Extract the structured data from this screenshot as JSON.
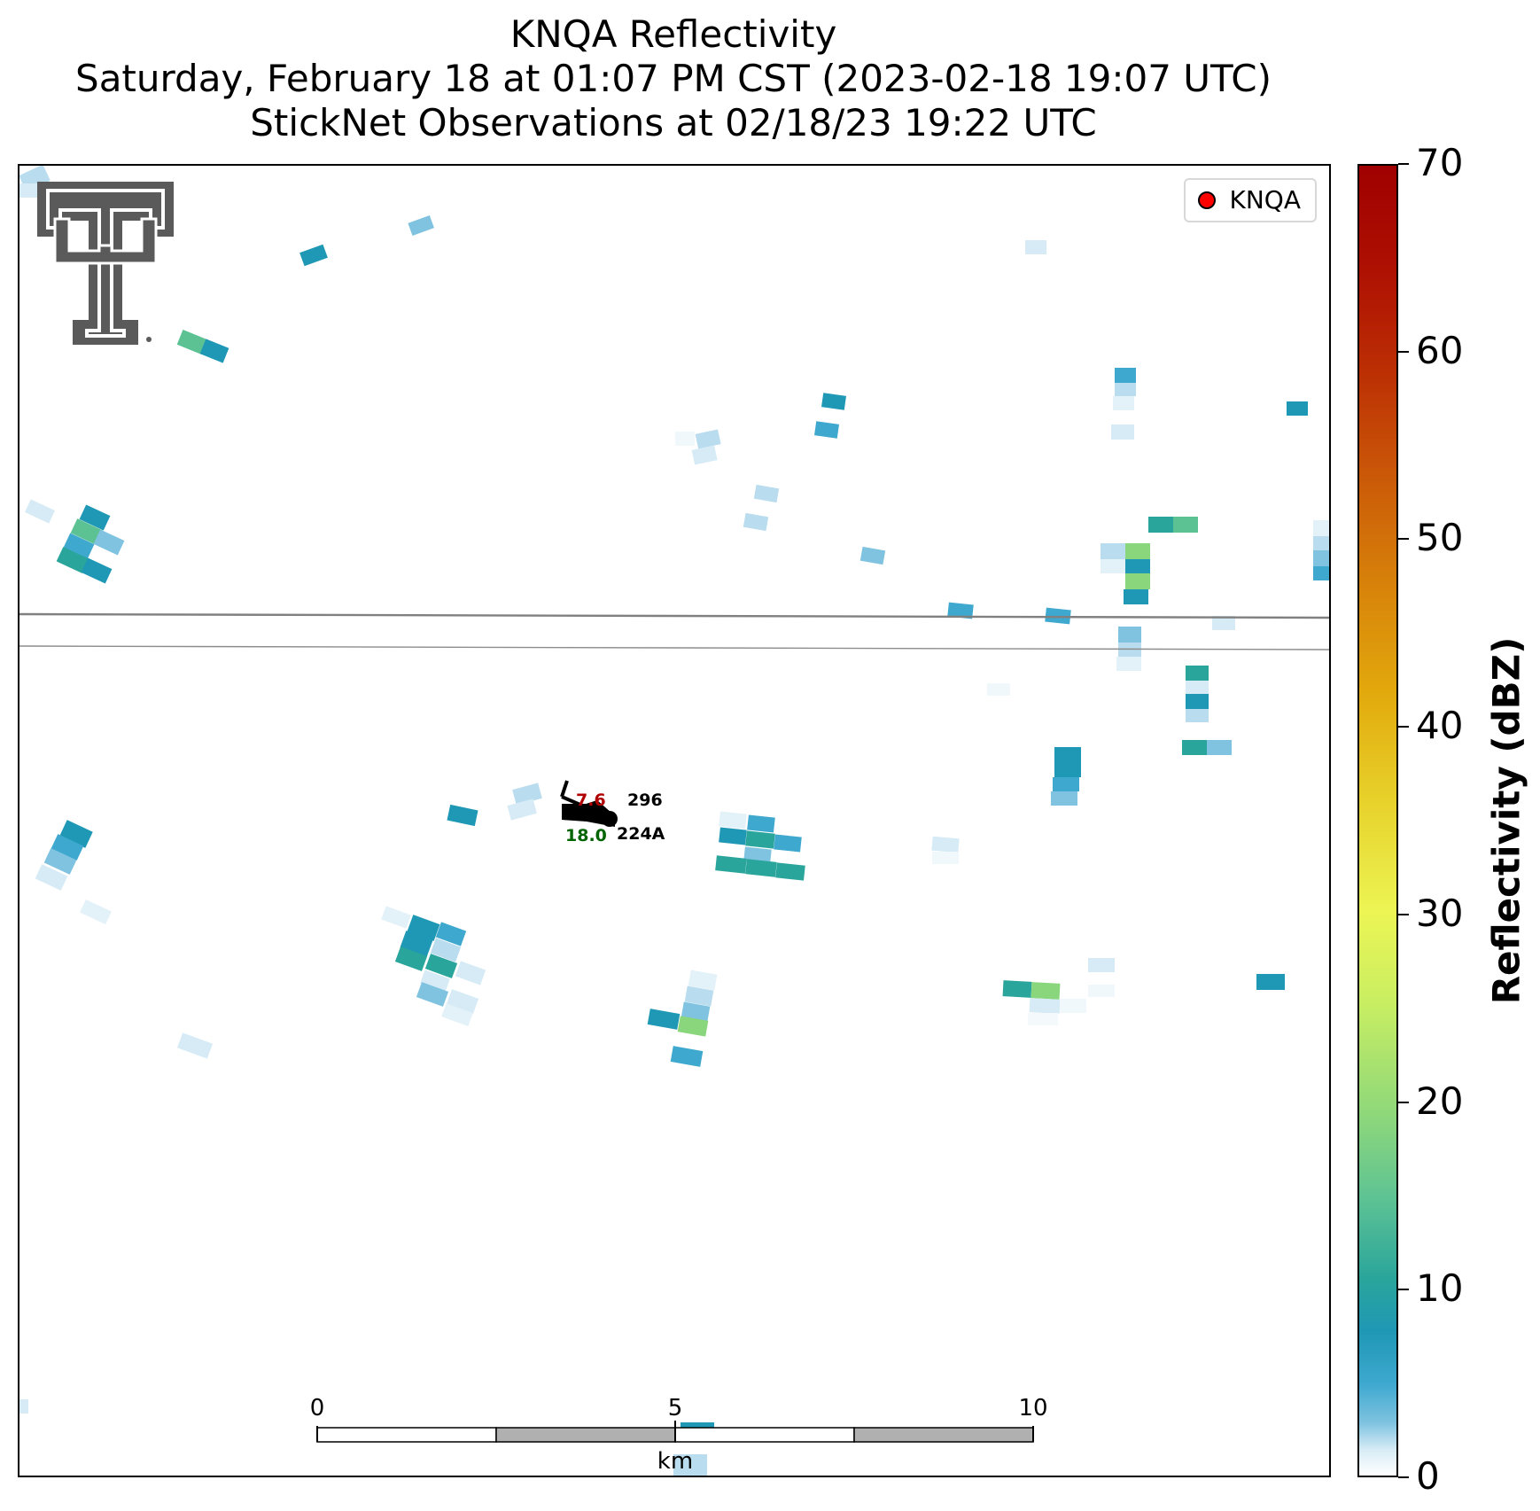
{
  "title": {
    "line1": "KNQA Reflectivity",
    "line2": "Saturday, February 18 at 01:07 PM CST (2023-02-18 19:07 UTC)",
    "line3": "StickNet Observations at 02/18/23 19:22 UTC"
  },
  "legend": {
    "label": "KNQA",
    "marker_color": "#ff0000"
  },
  "colorbar": {
    "label": "Reflectivity (dBZ)",
    "ticks": [
      "0",
      "10",
      "20",
      "30",
      "40",
      "50",
      "60",
      "70"
    ],
    "range": [
      0,
      70
    ]
  },
  "scalebar": {
    "tick0": "0",
    "tick5": "5",
    "tick10": "10",
    "unit": "km"
  },
  "station": {
    "temperature": "7.6",
    "pressure": "296",
    "dewpoint": "18.0",
    "id": "224A",
    "temperature_color": "#b00000",
    "dewpoint_color": "#006400"
  },
  "logo": {
    "icon": "double-t-logo-icon"
  },
  "colors": {
    "scalebar_gray": "#b0b0b0",
    "boundary_gray": "#808080"
  }
}
